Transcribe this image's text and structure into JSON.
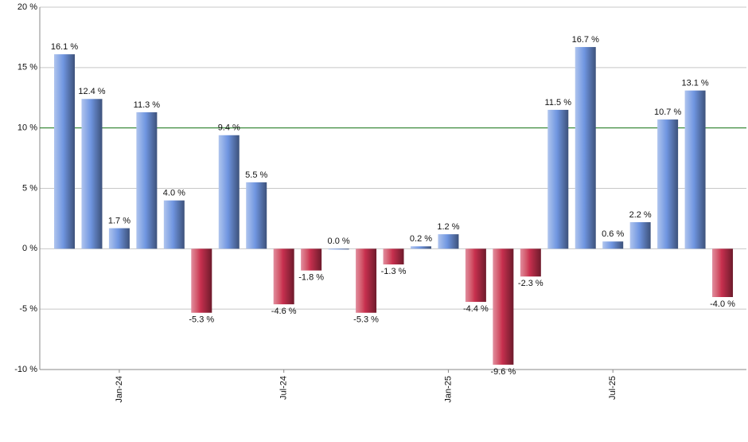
{
  "chart_data": {
    "type": "bar",
    "categories": [
      null,
      null,
      "Jan-24",
      null,
      null,
      null,
      null,
      null,
      "Jul-24",
      null,
      null,
      null,
      null,
      null,
      "Jan-25",
      null,
      null,
      null,
      null,
      null,
      "Jul-25",
      null,
      null,
      null,
      null
    ],
    "values": [
      16.1,
      12.4,
      1.7,
      11.3,
      4.0,
      -5.3,
      9.4,
      5.5,
      -4.6,
      -1.8,
      0.0,
      -5.3,
      -1.3,
      0.2,
      1.2,
      -4.4,
      -9.6,
      -2.3,
      11.5,
      16.7,
      0.6,
      2.2,
      10.7,
      13.1,
      -4.0
    ],
    "value_labels": [
      "16.1 %",
      "12.4 %",
      "1.7 %",
      "11.3 %",
      "4.0 %",
      "-5.3 %",
      "9.4 %",
      "5.5 %",
      "-4.6 %",
      "-1.8 %",
      "0.0 %",
      "-5.3 %",
      "-1.3 %",
      "0.2 %",
      "1.2 %",
      "-4.4 %",
      "-9.6 %",
      "-2.3 %",
      "11.5 %",
      "16.7 %",
      "0.6 %",
      "2.2 %",
      "10.7 %",
      "13.1 %",
      "-4.0 %"
    ],
    "color": "#6f95e0",
    "negative_color": "#c8304f",
    "ylim": [
      -10,
      20
    ],
    "yticks": [
      {
        "value": -10,
        "label": "-10 %"
      },
      {
        "value": -5,
        "label": "-5 %"
      },
      {
        "value": 0,
        "label": "0 %"
      },
      {
        "value": 5,
        "label": "5 %"
      },
      {
        "value": 10,
        "label": "10 %"
      },
      {
        "value": 15,
        "label": "15 %"
      },
      {
        "value": 20,
        "label": "20 %"
      }
    ],
    "reference_line": {
      "value": 10,
      "color": "#1a7a1a"
    },
    "grid": true
  }
}
